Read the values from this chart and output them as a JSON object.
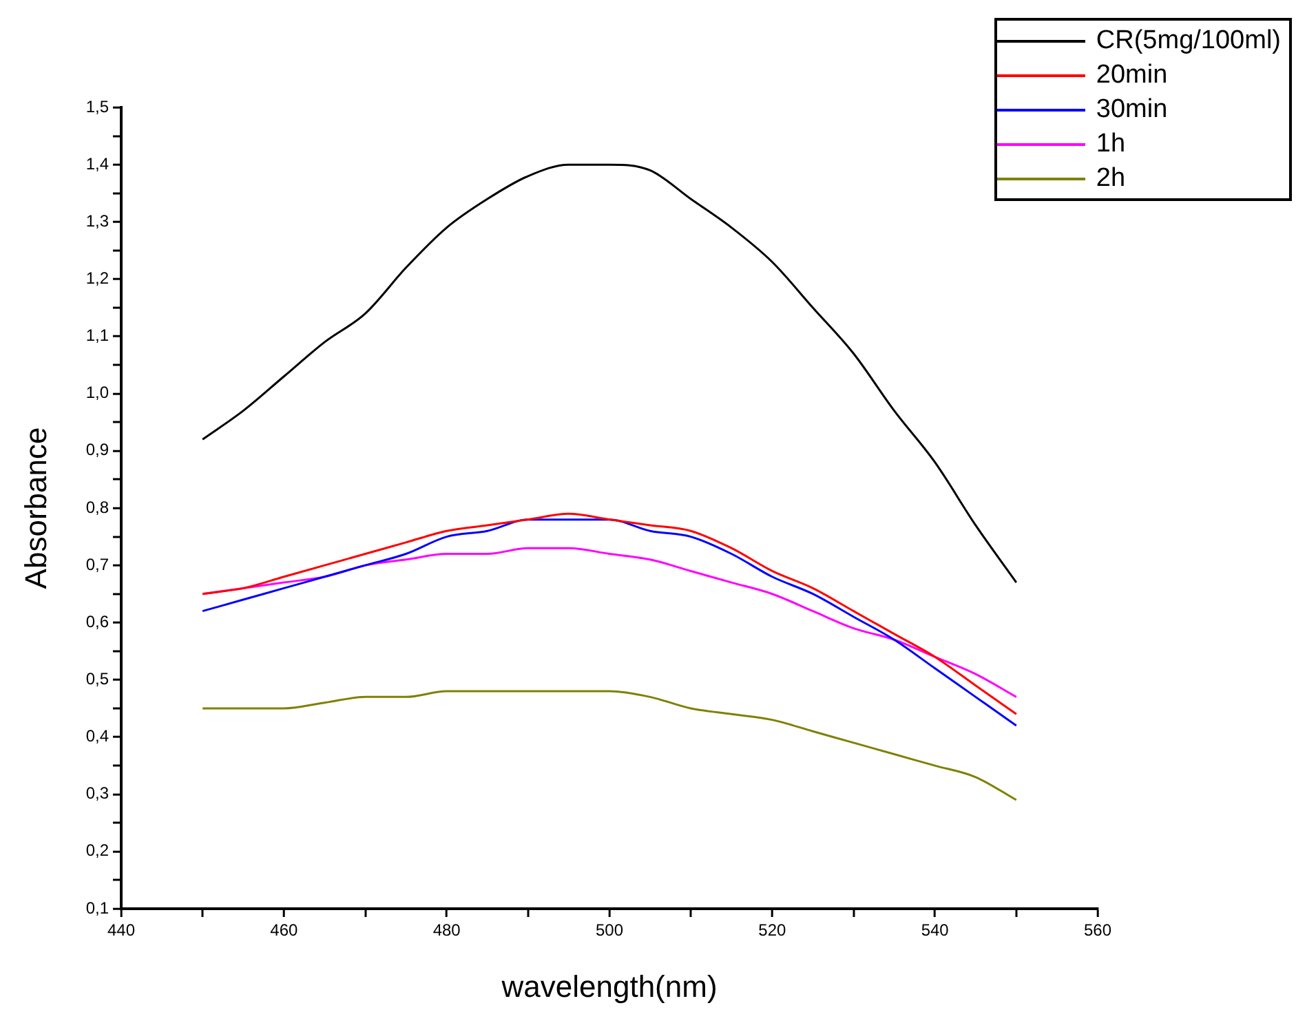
{
  "chart_data": {
    "type": "line",
    "xlabel": "wavelength(nm)",
    "ylabel": "Absorbance",
    "x": [
      450,
      455,
      460,
      465,
      470,
      475,
      480,
      485,
      490,
      495,
      500,
      505,
      510,
      515,
      520,
      525,
      530,
      535,
      540,
      545,
      550
    ],
    "series": [
      {
        "name": "CR(5mg/100ml)",
        "color": "#000000",
        "values": [
          0.92,
          0.97,
          1.03,
          1.09,
          1.14,
          1.22,
          1.29,
          1.34,
          1.38,
          1.4,
          1.4,
          1.39,
          1.34,
          1.29,
          1.23,
          1.15,
          1.07,
          0.97,
          0.88,
          0.77,
          0.67
        ]
      },
      {
        "name": "20min",
        "color": "#ff0000",
        "values": [
          0.65,
          0.66,
          0.68,
          0.7,
          0.72,
          0.74,
          0.76,
          0.77,
          0.78,
          0.79,
          0.78,
          0.77,
          0.76,
          0.73,
          0.69,
          0.66,
          0.62,
          0.58,
          0.54,
          0.49,
          0.44
        ]
      },
      {
        "name": "30min",
        "color": "#0000ff",
        "values": [
          0.62,
          0.64,
          0.66,
          0.68,
          0.7,
          0.72,
          0.75,
          0.76,
          0.78,
          0.78,
          0.78,
          0.76,
          0.75,
          0.72,
          0.68,
          0.65,
          0.61,
          0.57,
          0.52,
          0.47,
          0.42
        ]
      },
      {
        "name": "1h",
        "color": "#ff00ff",
        "values": [
          0.65,
          0.66,
          0.67,
          0.68,
          0.7,
          0.71,
          0.72,
          0.72,
          0.73,
          0.73,
          0.72,
          0.71,
          0.69,
          0.67,
          0.65,
          0.62,
          0.59,
          0.57,
          0.54,
          0.51,
          0.47
        ]
      },
      {
        "name": "2h",
        "color": "#808000",
        "values": [
          0.45,
          0.45,
          0.45,
          0.46,
          0.47,
          0.47,
          0.48,
          0.48,
          0.48,
          0.48,
          0.48,
          0.47,
          0.45,
          0.44,
          0.43,
          0.41,
          0.39,
          0.37,
          0.35,
          0.33,
          0.29
        ]
      }
    ],
    "xlim": [
      440,
      560
    ],
    "xticks": [
      440,
      {
        "value": 450,
        "label": null
      },
      460,
      {
        "value": 470,
        "label": null
      },
      480,
      {
        "value": 490,
        "label": null
      },
      500,
      {
        "value": 510,
        "label": null
      },
      520,
      {
        "value": 530,
        "label": null
      },
      540,
      {
        "value": 550,
        "label": null
      },
      560
    ],
    "ylim": [
      0.1,
      1.5
    ],
    "yticks": [
      {
        "value": 0.1,
        "label": "0,1"
      },
      {
        "value": 0.15,
        "label": null
      },
      {
        "value": 0.2,
        "label": "0,2"
      },
      {
        "value": 0.25,
        "label": null
      },
      {
        "value": 0.3,
        "label": "0,3"
      },
      {
        "value": 0.35,
        "label": null
      },
      {
        "value": 0.4,
        "label": "0,4"
      },
      {
        "value": 0.45,
        "label": null
      },
      {
        "value": 0.5,
        "label": "0,5"
      },
      {
        "value": 0.55,
        "label": null
      },
      {
        "value": 0.6,
        "label": "0,6"
      },
      {
        "value": 0.65,
        "label": null
      },
      {
        "value": 0.7,
        "label": "0,7"
      },
      {
        "value": 0.75,
        "label": null
      },
      {
        "value": 0.8,
        "label": "0,8"
      },
      {
        "value": 0.85,
        "label": null
      },
      {
        "value": 0.9,
        "label": "0,9"
      },
      {
        "value": 0.95,
        "label": null
      },
      {
        "value": 1.0,
        "label": "1,0"
      },
      {
        "value": 1.05,
        "label": null
      },
      {
        "value": 1.1,
        "label": "1,1"
      },
      {
        "value": 1.15,
        "label": null
      },
      {
        "value": 1.2,
        "label": "1,2"
      },
      {
        "value": 1.25,
        "label": null
      },
      {
        "value": 1.3,
        "label": "1,3"
      },
      {
        "value": 1.35,
        "label": null
      },
      {
        "value": 1.4,
        "label": "1,4"
      },
      {
        "value": 1.45,
        "label": null
      },
      {
        "value": 1.5,
        "label": "1,5"
      }
    ],
    "grid": false,
    "legend": "top right",
    "marker": "none",
    "line_style": "solid"
  }
}
